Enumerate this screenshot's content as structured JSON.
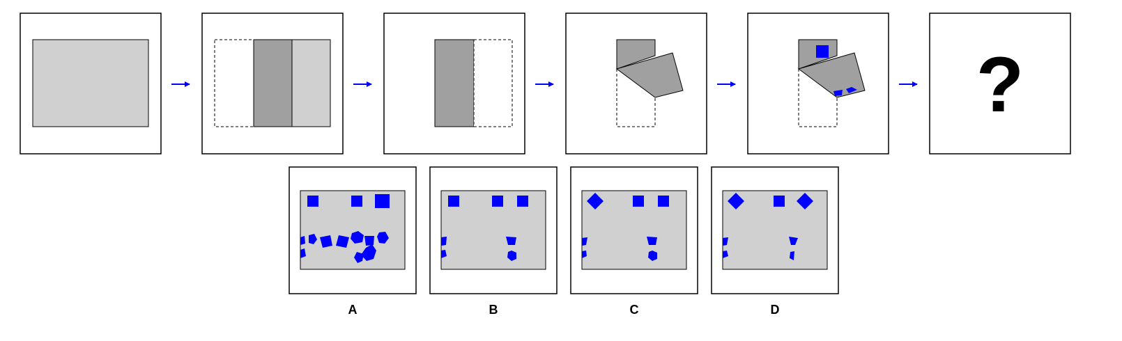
{
  "sequence": {
    "question_mark": "?",
    "arrow_color": "#0000ff"
  },
  "options": [
    {
      "label": "A"
    },
    {
      "label": "B"
    },
    {
      "label": "C"
    },
    {
      "label": "D"
    }
  ],
  "colors": {
    "paper": "#d0d0d0",
    "folded": "#a0a0a0",
    "punch": "#0000ff",
    "outline": "#000000"
  }
}
